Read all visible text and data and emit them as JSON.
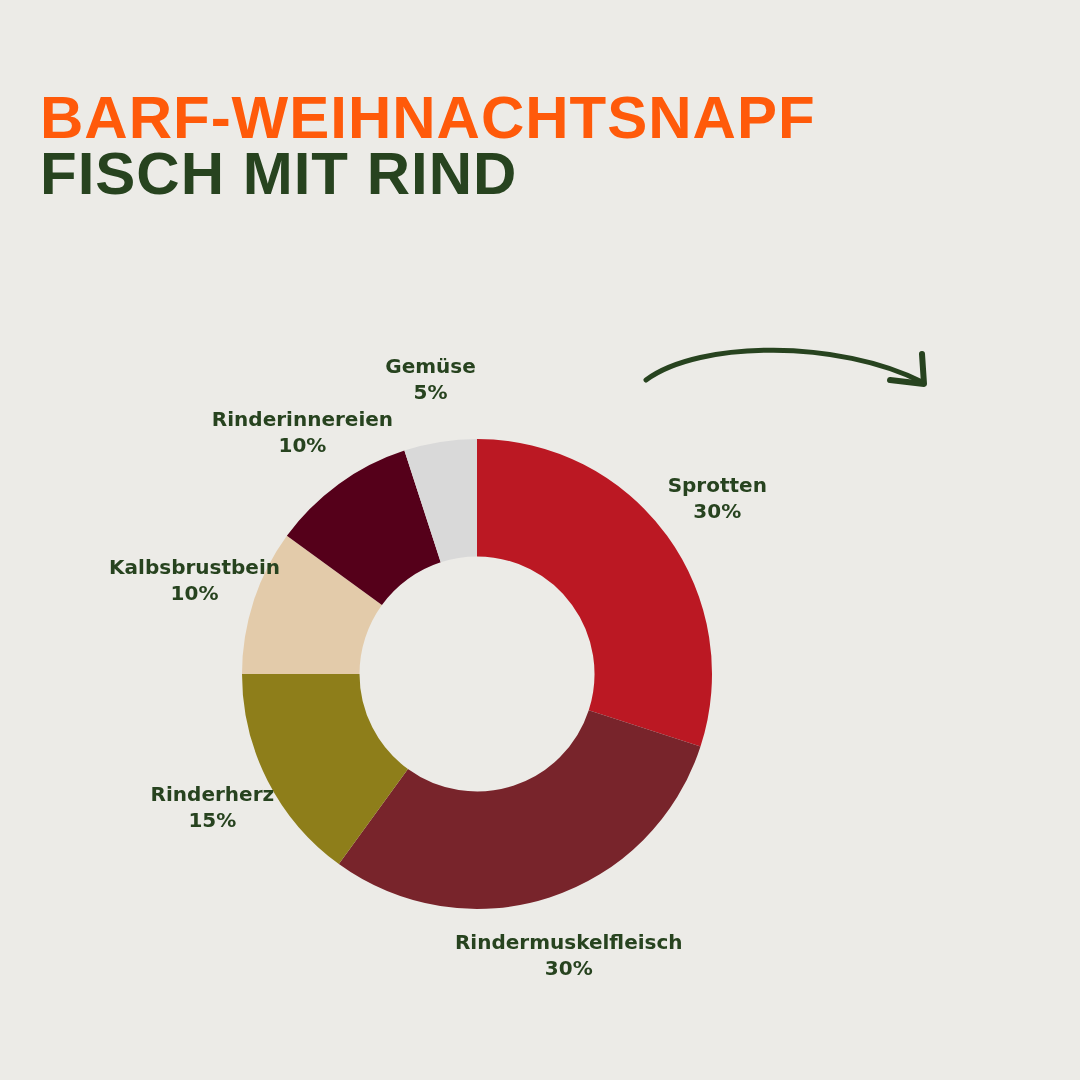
{
  "chart_data": {
    "type": "donut",
    "title": "BARF-WEIHNACHTSNAPF",
    "subtitle": "FISCH MIT RIND",
    "categories": [
      "Sprotten",
      "Rindermuskelfleisch",
      "Rinderherz",
      "Kalbsbrustbein",
      "Rinderinnereien",
      "Gemüse"
    ],
    "values": [
      30,
      30,
      15,
      10,
      10,
      5
    ],
    "colors": [
      "#bb1823",
      "#78242b",
      "#8e7e1a",
      "#e3cbaa",
      "#55001a",
      "#d9d9d9"
    ],
    "value_labels": [
      "30%",
      "30%",
      "15%",
      "10%",
      "10%",
      "5%"
    ],
    "legend": false
  }
}
